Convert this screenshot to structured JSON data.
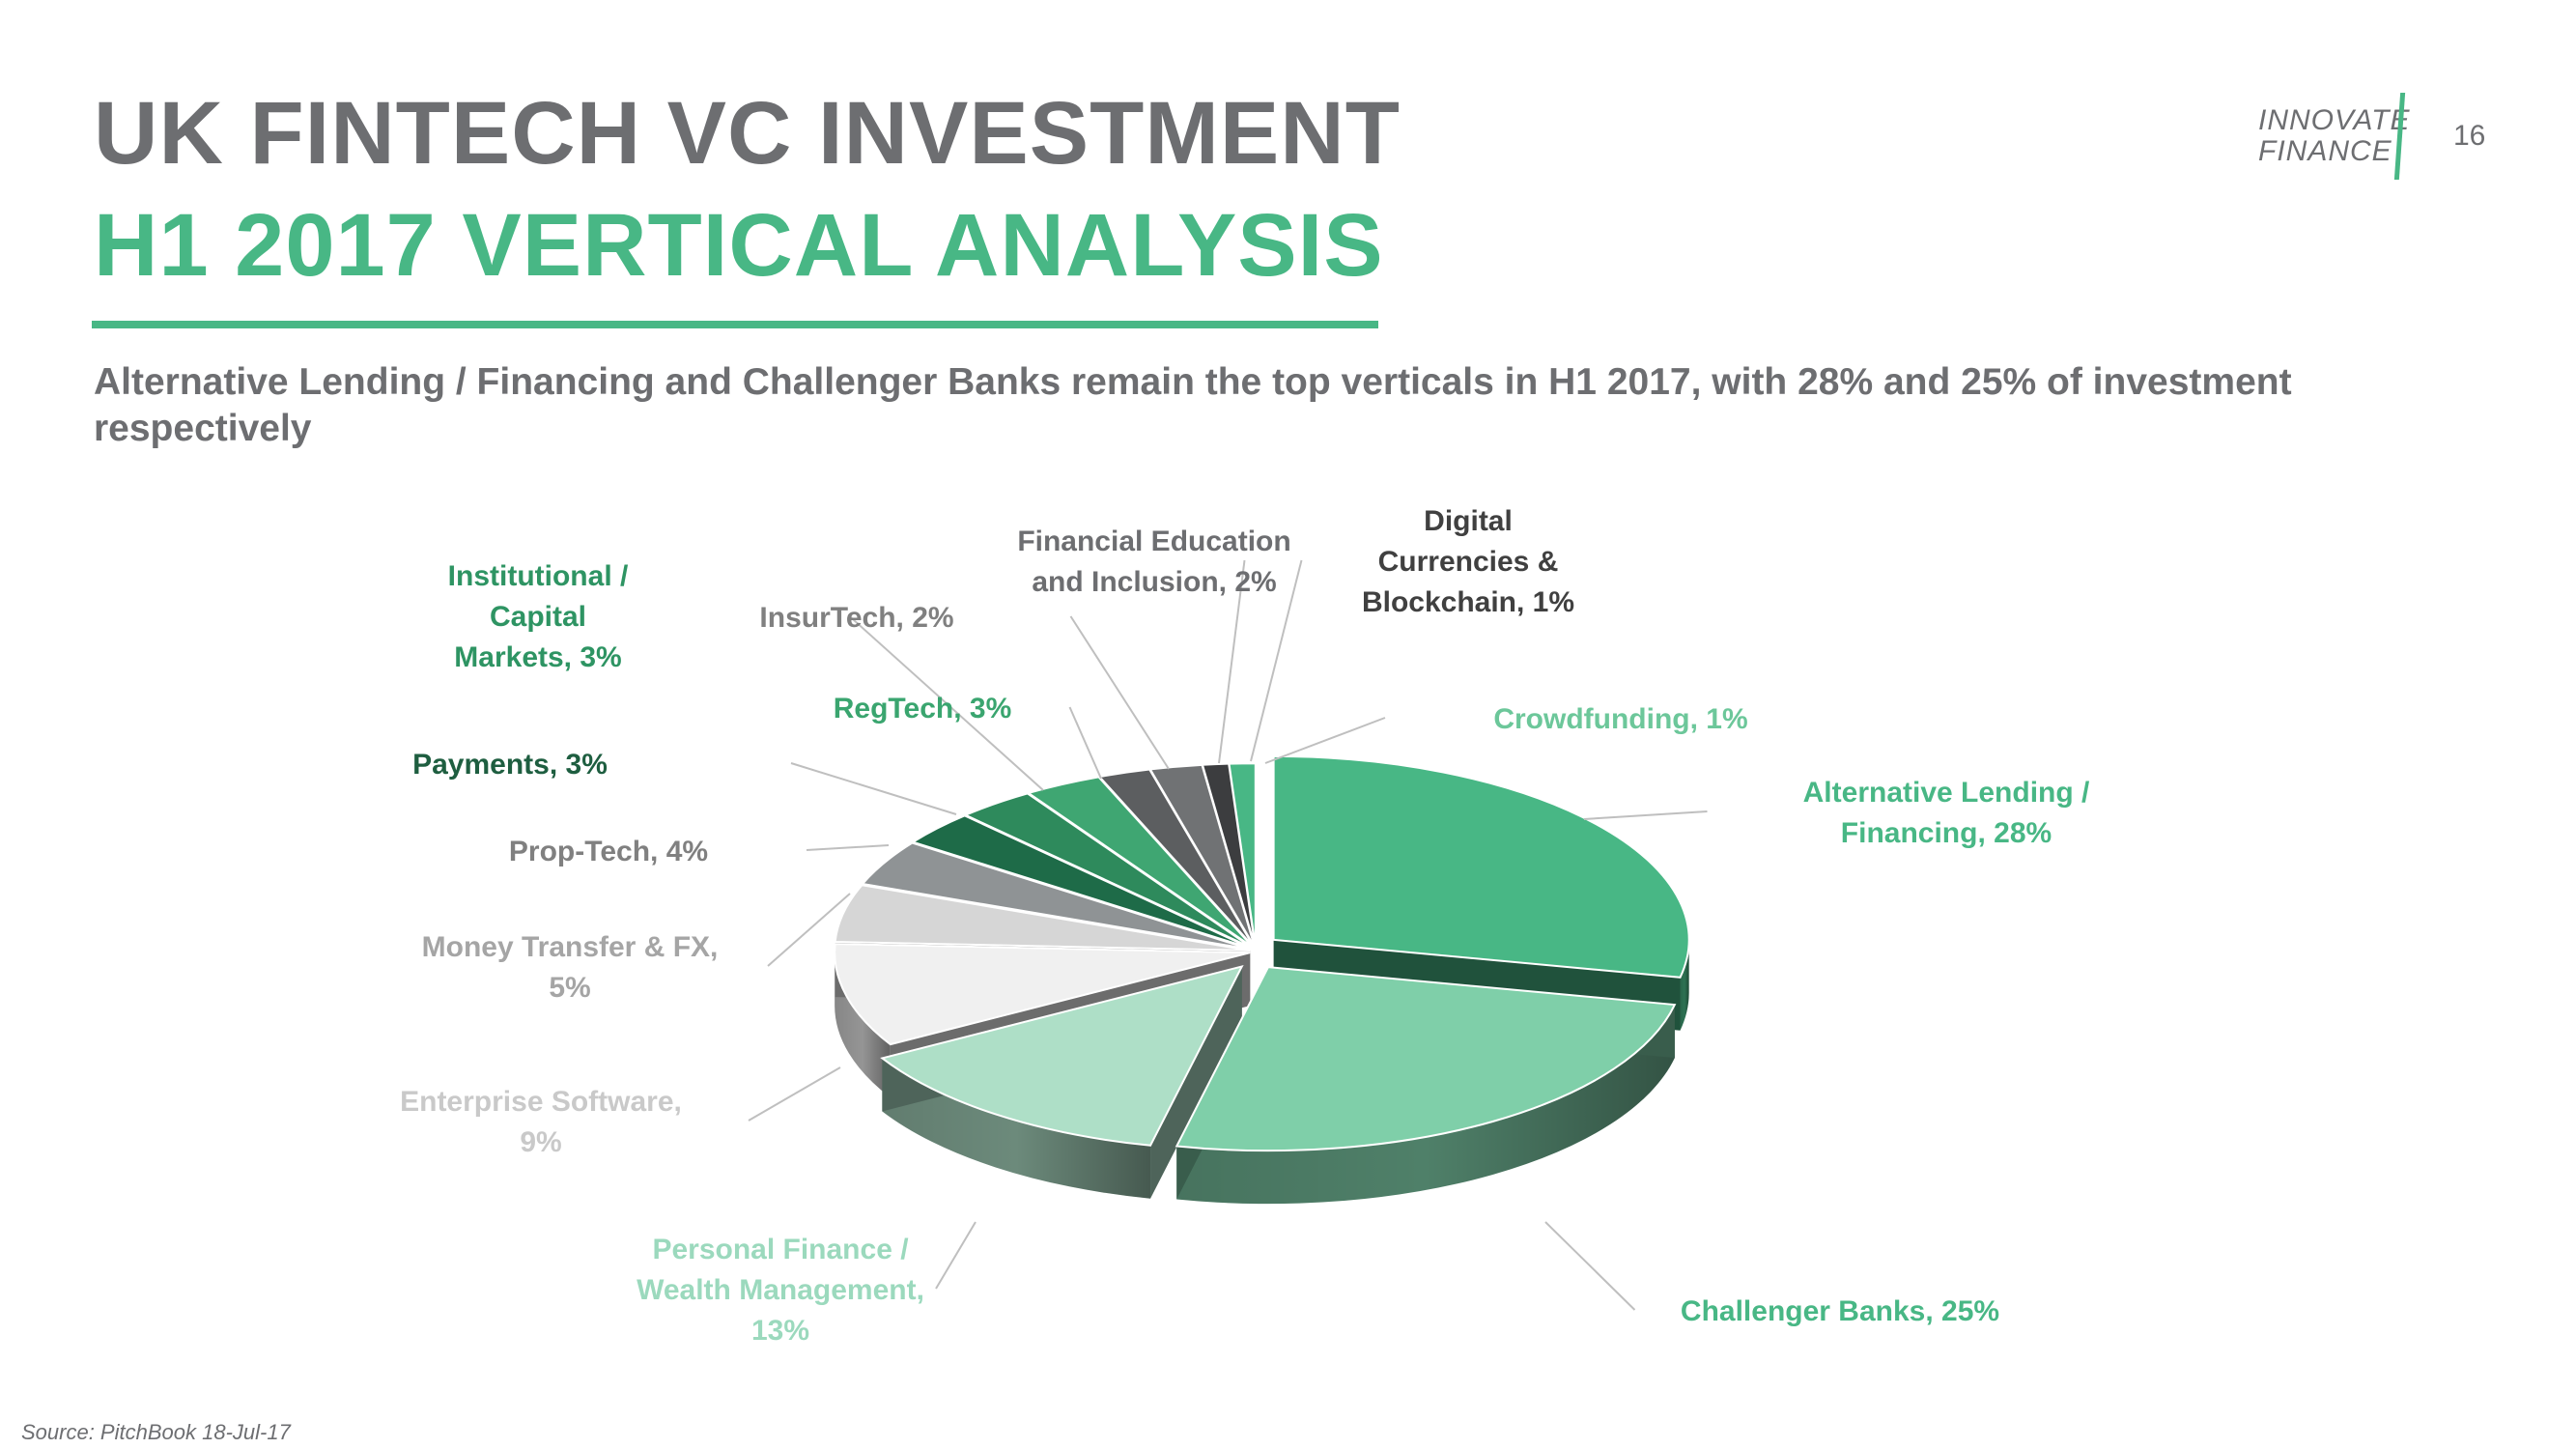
{
  "header": {
    "title_line1": "UK FINTECH VC INVESTMENT",
    "title_line2": "H1 2017 VERTICAL ANALYSIS",
    "subtitle": "Alternative Lending /  Financing and Challenger  Banks remain the top verticals in H1 2017, with 28% and 25% of investment respectively",
    "logo_line1": "INNOVATE",
    "logo_line2": "FINANCE",
    "page_number": "16"
  },
  "footer": {
    "source": "Source: PitchBook 18-Jul-17"
  },
  "colors": {
    "title_gray": "#6d6e71",
    "accent_green": "#48b785"
  },
  "chart_data": {
    "type": "pie",
    "title": "",
    "style": "3d-exploded",
    "slices": [
      {
        "label_lines": [
          "Alternative Lending /",
          "Financing, 28%"
        ],
        "value": 28,
        "color": "#48b785",
        "label_color": "#48b785"
      },
      {
        "label_lines": [
          "Challenger  Banks, 25%"
        ],
        "value": 25,
        "color": "#7fcfa9",
        "label_color": "#48b785"
      },
      {
        "label_lines": [
          "Personal Finance /",
          "Wealth Management,",
          "13%"
        ],
        "value": 13,
        "color": "#aedfc7",
        "label_color": "#9bd9bd"
      },
      {
        "label_lines": [
          "Enterprise Software,",
          "9%"
        ],
        "value": 9,
        "color": "#f0f0f0",
        "label_color": "#c9c9c9"
      },
      {
        "label_lines": [
          "Money Transfer & FX,",
          "5%"
        ],
        "value": 5,
        "color": "#d6d6d6",
        "label_color": "#a5a5a5"
      },
      {
        "label_lines": [
          "Prop-Tech, 4%"
        ],
        "value": 4,
        "color": "#8f9395",
        "label_color": "#808080"
      },
      {
        "label_lines": [
          "Payments, 3%"
        ],
        "value": 3,
        "color": "#1e6b48",
        "label_color": "#1e5e40"
      },
      {
        "label_lines": [
          "Institutional /",
          "Capital",
          "Markets, 3%"
        ],
        "value": 3,
        "color": "#2e8a5c",
        "label_color": "#2e9463"
      },
      {
        "label_lines": [
          "RegTech,  3%"
        ],
        "value": 3,
        "color": "#3fa672",
        "label_color": "#3aa56f"
      },
      {
        "label_lines": [
          "InsurTech, 2%"
        ],
        "value": 2,
        "color": "#5c5e60",
        "label_color": "#808080"
      },
      {
        "label_lines": [
          "Financial Education",
          "and Inclusion, 2%"
        ],
        "value": 2,
        "color": "#707274",
        "label_color": "#6d6e71"
      },
      {
        "label_lines": [
          "Digital",
          "Currencies &",
          "Blockchain, 1%"
        ],
        "value": 1,
        "color": "#3c3d3f",
        "label_color": "#404040"
      },
      {
        "label_lines": [
          "Crowdfunding,  1%"
        ],
        "value": 1,
        "color": "#48b785",
        "label_color": "#6cc79a"
      }
    ]
  }
}
